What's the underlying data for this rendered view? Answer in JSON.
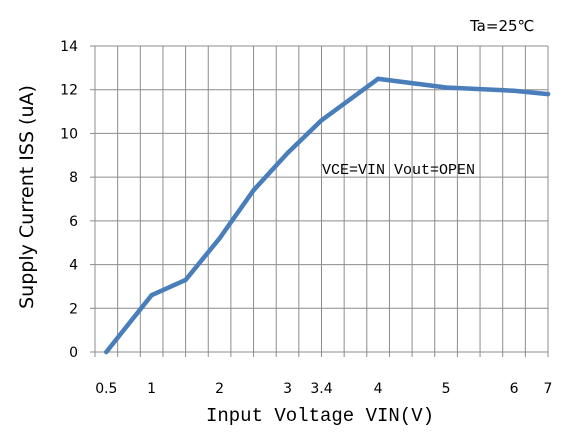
{
  "chart_data": {
    "type": "line",
    "condition_label": "Ta=25℃",
    "annotation": "VCE=VIN Vout=OPEN",
    "xlabel": "Input Voltage VIN(V)",
    "ylabel": "Supply Current ISS (uA)",
    "x_tick_labels": [
      "0.5",
      "1",
      "2",
      "3",
      "3.4",
      "4",
      "5",
      "6",
      "7"
    ],
    "y_ticks": [
      0,
      2,
      4,
      6,
      8,
      10,
      12,
      14
    ],
    "ylim": [
      0,
      14
    ],
    "grid": true,
    "series": [
      {
        "color": "#4a7ebb",
        "x": [
          0.5,
          1.0,
          1.5,
          2.0,
          2.5,
          3.0,
          3.4,
          4.0,
          5.0,
          6.0,
          7.0
        ],
        "y": [
          0.0,
          2.6,
          3.3,
          5.2,
          7.4,
          9.1,
          10.6,
          12.5,
          12.1,
          11.95,
          11.8
        ]
      }
    ]
  }
}
